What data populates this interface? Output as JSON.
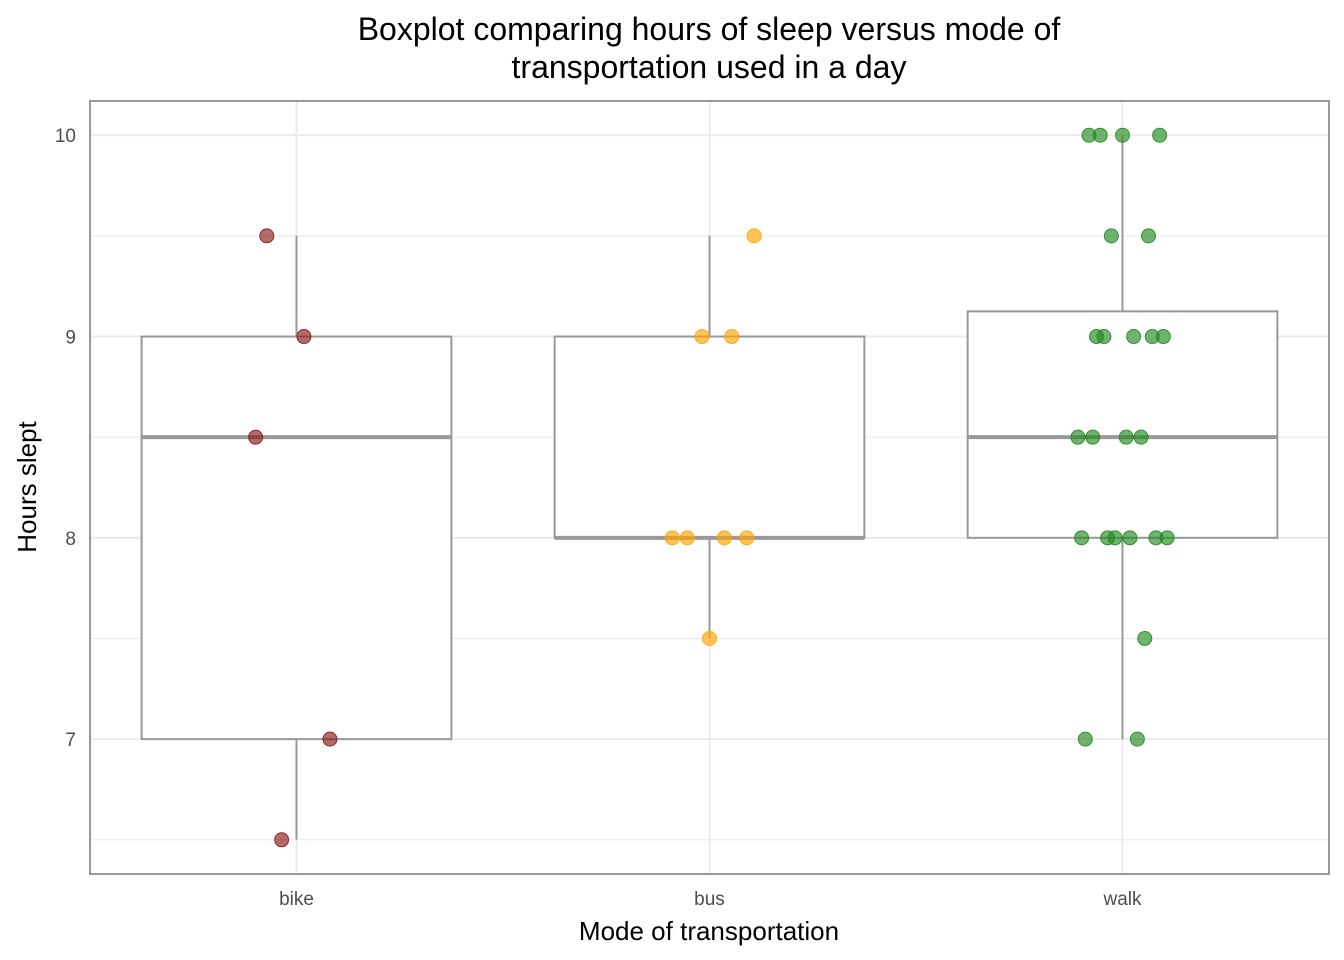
{
  "chart_data": {
    "type": "boxplot",
    "title_lines": [
      "Boxplot comparing hours of sleep versus mode of",
      "transportation used in a day"
    ],
    "xlabel": "Mode of transportation",
    "ylabel": "Hours slept",
    "categories": [
      "bike",
      "bus",
      "walk"
    ],
    "yticks": [
      "7",
      "8",
      "9",
      "10"
    ],
    "ylim": [
      6.33,
      10.17
    ],
    "grid": true,
    "boxes": [
      {
        "category": "bike",
        "whisker_low": 6.5,
        "q1": 7,
        "median": 8.5,
        "q3": 9,
        "whisker_high": 9.5
      },
      {
        "category": "bus",
        "whisker_low": 7.5,
        "q1": 8,
        "median": 8,
        "q3": 9,
        "whisker_high": 9.5
      },
      {
        "category": "walk",
        "whisker_low": 7,
        "q1": 8,
        "median": 8.5,
        "q3": 9.125,
        "whisker_high": 10
      }
    ],
    "points": [
      {
        "category": "bike",
        "values": [
          9.5,
          9,
          8.5,
          7,
          6.5
        ]
      },
      {
        "category": "bus",
        "values": [
          9.5,
          9,
          9,
          8,
          8,
          8,
          8,
          7.5
        ]
      },
      {
        "category": "walk",
        "values": [
          10,
          10,
          10,
          10,
          9.5,
          9.5,
          9,
          9,
          9,
          9,
          9,
          8.5,
          8.5,
          8.5,
          8.5,
          8,
          8,
          8,
          8,
          8,
          8,
          7.5,
          7,
          7
        ]
      }
    ],
    "colors": {
      "bike": "#8b1a1a",
      "bus": "#ffa500",
      "walk": "#228b22",
      "box": "#999999",
      "grid": "#ebebeb",
      "panel_border": "#999999"
    }
  }
}
